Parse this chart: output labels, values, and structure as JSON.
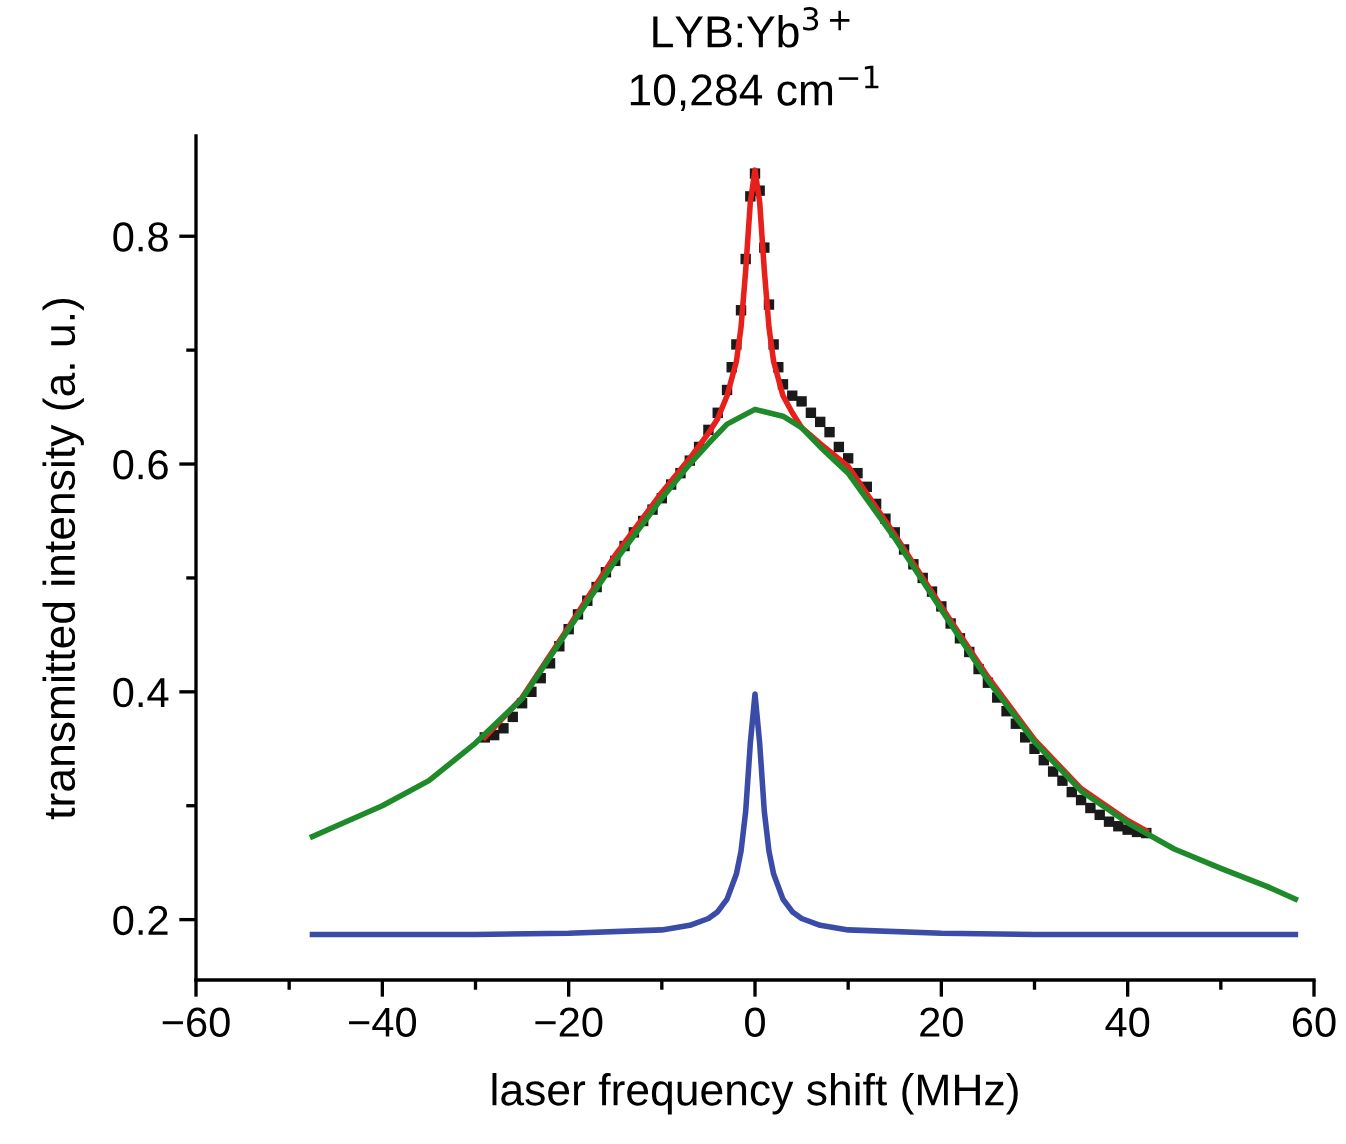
{
  "chart_data": {
    "type": "line",
    "title": "LYB:Yb$^{3+}$",
    "subtitle": "10,284 cm$^{−1}$",
    "xlabel": "laser frequency shift (MHz)",
    "ylabel": "transmitted intensity (a. u.)",
    "xlim": [
      -60,
      60
    ],
    "ylim": [
      0.147,
      0.888
    ],
    "xticks": [
      -60,
      {
        "value": -50,
        "label": null
      },
      -40,
      {
        "value": -30,
        "label": null
      },
      -20,
      {
        "value": -10,
        "label": null
      },
      0,
      {
        "value": 10,
        "label": null
      },
      20,
      {
        "value": 30,
        "label": null
      },
      40,
      {
        "value": 50,
        "label": null
      },
      60
    ],
    "yticks": [
      0.2,
      {
        "value": 0.3,
        "label": null
      },
      0.4,
      {
        "value": 0.5,
        "label": null
      },
      0.6,
      {
        "value": 0.7,
        "label": null
      },
      0.8
    ],
    "series": [
      {
        "type": "scatter",
        "marker": "square",
        "color": "#1a1a1a",
        "x": [
          -29,
          -28,
          -27,
          -26,
          -25,
          -24,
          -23,
          -22,
          -21,
          -20,
          -19,
          -18,
          -17,
          -16,
          -15,
          -14,
          -13,
          -12,
          -11,
          -10,
          -9,
          -8,
          -7,
          -6,
          -5,
          -4,
          -3,
          -2.5,
          -2,
          -1.5,
          -1,
          -0.5,
          0,
          0.5,
          1,
          1.5,
          2,
          2.5,
          3,
          4,
          5,
          6,
          7,
          8,
          9,
          10,
          11,
          12,
          13,
          14,
          15,
          16,
          17,
          18,
          19,
          20,
          21,
          22,
          23,
          24,
          25,
          26,
          27,
          28,
          29,
          30,
          31,
          32,
          33,
          34,
          35,
          36,
          37,
          38,
          39,
          40,
          41,
          42
        ],
        "values": [
          0.36,
          0.362,
          0.368,
          0.378,
          0.39,
          0.4,
          0.412,
          0.425,
          0.44,
          0.455,
          0.468,
          0.48,
          0.492,
          0.505,
          0.515,
          0.528,
          0.54,
          0.55,
          0.56,
          0.57,
          0.582,
          0.592,
          0.603,
          0.615,
          0.63,
          0.645,
          0.665,
          0.685,
          0.705,
          0.735,
          0.78,
          0.835,
          0.855,
          0.84,
          0.79,
          0.74,
          0.705,
          0.685,
          0.67,
          0.66,
          0.655,
          0.645,
          0.637,
          0.628,
          0.615,
          0.605,
          0.592,
          0.58,
          0.565,
          0.552,
          0.54,
          0.525,
          0.512,
          0.5,
          0.488,
          0.475,
          0.46,
          0.447,
          0.435,
          0.42,
          0.408,
          0.395,
          0.383,
          0.372,
          0.36,
          0.35,
          0.34,
          0.33,
          0.322,
          0.312,
          0.305,
          0.298,
          0.292,
          0.286,
          0.282,
          0.279,
          0.277,
          0.276
        ]
      },
      {
        "color": "#e8201c",
        "x": [
          -29,
          -25,
          -20,
          -15,
          -10,
          -7,
          -5,
          -4,
          -3,
          -2,
          -1.5,
          -1,
          -0.5,
          0,
          0.5,
          1,
          1.5,
          2,
          3,
          4,
          5,
          7,
          10,
          15,
          20,
          25,
          30,
          35,
          40,
          42
        ],
        "values": [
          0.36,
          0.395,
          0.457,
          0.52,
          0.575,
          0.605,
          0.627,
          0.64,
          0.66,
          0.69,
          0.72,
          0.77,
          0.83,
          0.858,
          0.83,
          0.77,
          0.72,
          0.69,
          0.66,
          0.645,
          0.632,
          0.618,
          0.598,
          0.538,
          0.475,
          0.413,
          0.358,
          0.315,
          0.287,
          0.278
        ]
      },
      {
        "color": "#1f8a2a",
        "x": [
          -47.5,
          -45,
          -40,
          -35,
          -30,
          -25,
          -20,
          -15,
          -10,
          -7,
          -5,
          -3,
          0,
          3,
          5,
          7,
          10,
          15,
          20,
          25,
          30,
          35,
          40,
          45,
          50,
          55,
          58
        ],
        "values": [
          0.273,
          0.282,
          0.3,
          0.322,
          0.355,
          0.394,
          0.455,
          0.515,
          0.57,
          0.6,
          0.618,
          0.635,
          0.648,
          0.642,
          0.632,
          0.615,
          0.592,
          0.535,
          0.472,
          0.41,
          0.356,
          0.313,
          0.285,
          0.262,
          0.245,
          0.229,
          0.218
        ]
      },
      {
        "color": "#3b4ba8",
        "x": [
          -47.5,
          -30,
          -20,
          -10,
          -7,
          -5,
          -4,
          -3,
          -2,
          -1.5,
          -1,
          -0.5,
          0,
          0.5,
          1,
          1.5,
          2,
          3,
          4,
          5,
          7,
          10,
          20,
          30,
          58
        ],
        "values": [
          0.187,
          0.187,
          0.188,
          0.191,
          0.195,
          0.201,
          0.207,
          0.218,
          0.24,
          0.26,
          0.295,
          0.355,
          0.398,
          0.355,
          0.295,
          0.26,
          0.24,
          0.218,
          0.207,
          0.201,
          0.195,
          0.191,
          0.188,
          0.187,
          0.187
        ]
      }
    ]
  }
}
